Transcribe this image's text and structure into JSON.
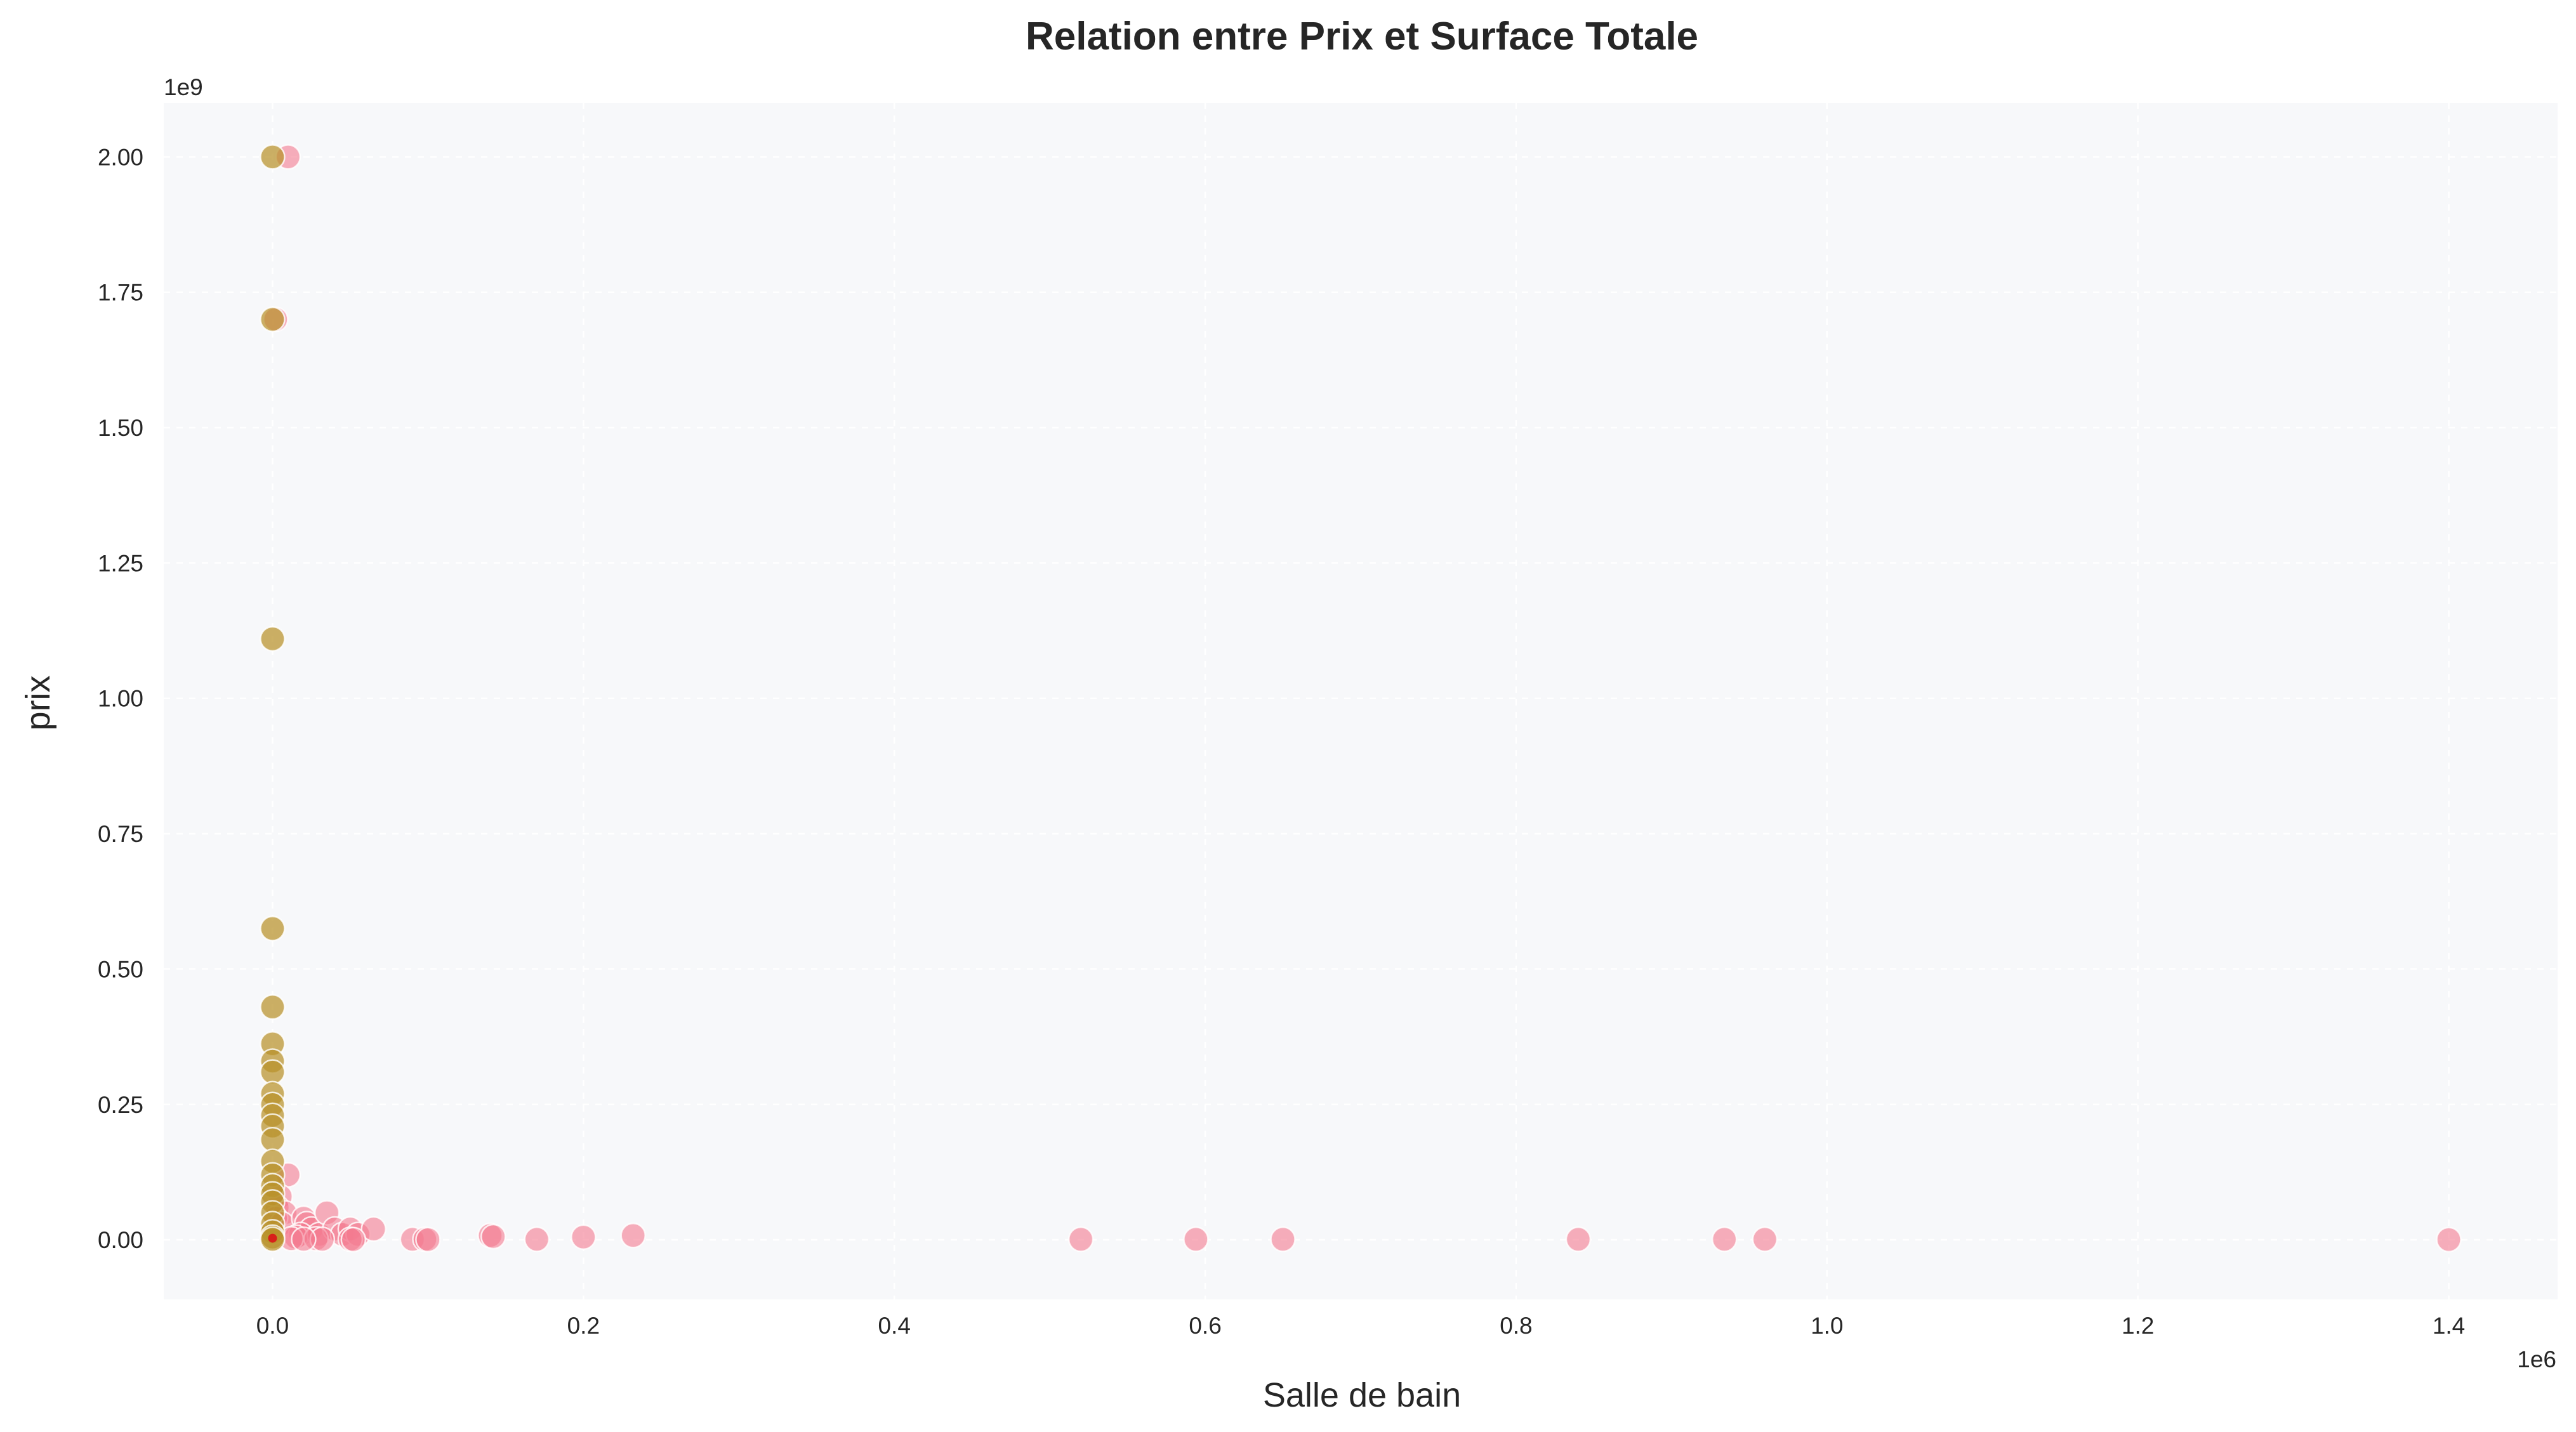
{
  "chart_data": {
    "type": "scatter",
    "title": "Relation entre Prix et Surface Totale",
    "xlabel": "Salle de bain",
    "ylabel": "prix",
    "x_offset_text": "1e6",
    "y_offset_text": "1e9",
    "x_scale": 1000000,
    "y_scale": 1000000000,
    "xlim": [
      -70000,
      1470000
    ],
    "ylim": [
      -110000000,
      2100000000
    ],
    "x_ticks": [
      0,
      200000,
      400000,
      600000,
      800000,
      1000000,
      1200000,
      1400000
    ],
    "x_tick_labels": [
      "0.0",
      "0.2",
      "0.4",
      "0.6",
      "0.8",
      "1.0",
      "1.2",
      "1.4"
    ],
    "y_ticks": [
      0,
      250000000,
      500000000,
      750000000,
      1000000000,
      1250000000,
      1500000000,
      1750000000,
      2000000000
    ],
    "y_tick_labels": [
      "0.00",
      "0.25",
      "0.50",
      "0.75",
      "1.00",
      "1.25",
      "1.50",
      "1.75",
      "2.00"
    ],
    "grid": true,
    "background": "#f7f8fa",
    "series": [
      {
        "color": "#f47a90",
        "points": [
          [
            10000,
            2000000000
          ],
          [
            2000,
            1700000000
          ],
          [
            10000,
            120000000
          ],
          [
            5000,
            80000000
          ],
          [
            3000,
            60000000
          ],
          [
            8000,
            50000000
          ],
          [
            2000,
            40000000
          ],
          [
            6000,
            30000000
          ],
          [
            20000,
            40000000
          ],
          [
            22000,
            30000000
          ],
          [
            25000,
            20000000
          ],
          [
            18000,
            10000000
          ],
          [
            15000,
            5000000
          ],
          [
            12000,
            2000000
          ],
          [
            30000,
            10000000
          ],
          [
            35000,
            50000000
          ],
          [
            40000,
            20000000
          ],
          [
            45000,
            10000000
          ],
          [
            50000,
            20000000
          ],
          [
            55000,
            10000000
          ],
          [
            65000,
            20000000
          ],
          [
            28000,
            2000000
          ],
          [
            32000,
            1000000
          ],
          [
            20000,
            1000000
          ],
          [
            50000,
            1000000
          ],
          [
            52000,
            500000
          ],
          [
            90000,
            1000000
          ],
          [
            98000,
            1000000
          ],
          [
            100000,
            500000
          ],
          [
            140000,
            8000000
          ],
          [
            142000,
            6000000
          ],
          [
            170000,
            1000000
          ],
          [
            200000,
            5000000
          ],
          [
            232000,
            8000000
          ],
          [
            520000,
            1000000
          ],
          [
            594000,
            1000000
          ],
          [
            650000,
            1000000
          ],
          [
            840000,
            1000000
          ],
          [
            934000,
            1000000
          ],
          [
            960000,
            1000000
          ],
          [
            1400000,
            500000
          ]
        ]
      },
      {
        "color": "#b89229",
        "points": [
          [
            0,
            2000000000
          ],
          [
            0,
            1700000000
          ],
          [
            0,
            1110000000
          ],
          [
            0,
            575000000
          ],
          [
            0,
            430000000
          ],
          [
            0,
            362000000
          ],
          [
            0,
            330000000
          ],
          [
            0,
            310000000
          ],
          [
            0,
            270000000
          ],
          [
            0,
            250000000
          ],
          [
            0,
            230000000
          ],
          [
            0,
            210000000
          ],
          [
            0,
            185000000
          ],
          [
            0,
            145000000
          ],
          [
            0,
            120000000
          ],
          [
            0,
            100000000
          ],
          [
            0,
            85000000
          ],
          [
            0,
            70000000
          ],
          [
            0,
            50000000
          ],
          [
            0,
            30000000
          ],
          [
            0,
            15000000
          ],
          [
            0,
            5000000
          ],
          [
            0,
            1000000
          ]
        ]
      }
    ],
    "highlight_point": {
      "x": 0,
      "y": 3000000,
      "color": "#d8211a"
    }
  }
}
